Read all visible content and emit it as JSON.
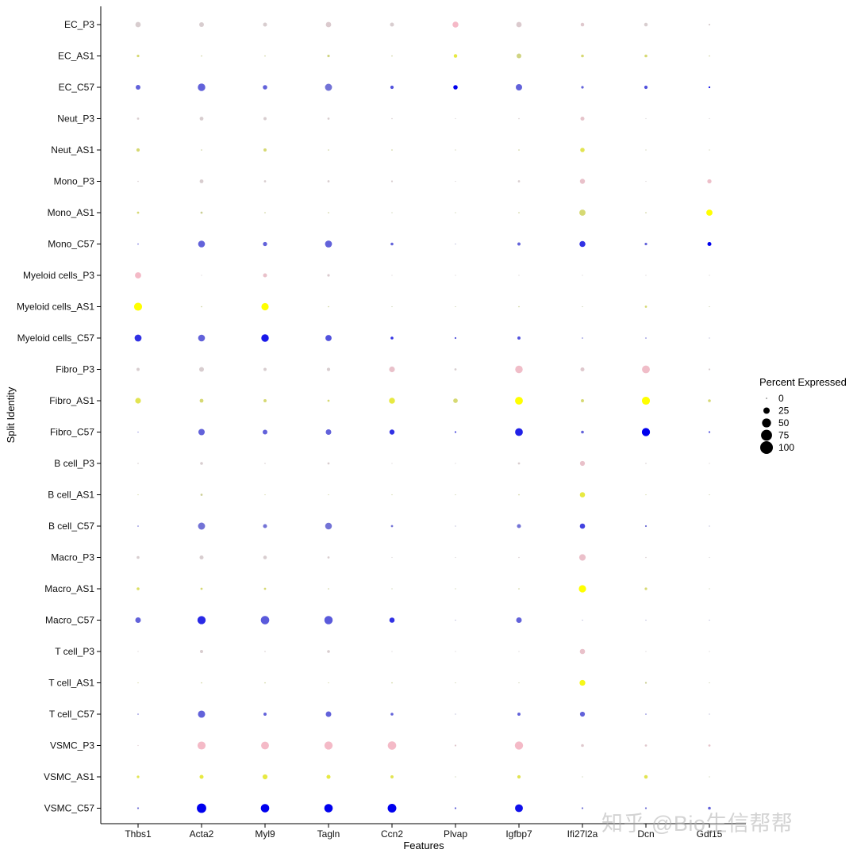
{
  "chart_data": {
    "type": "dotplot",
    "xlabel": "Features",
    "ylabel": "Split Identity",
    "features": [
      "Thbs1",
      "Acta2",
      "Myl9",
      "Tagln",
      "Ccn2",
      "Plvap",
      "Igfbp7",
      "Ifi27l2a",
      "Dcn",
      "Gdf15"
    ],
    "identities": [
      "EC_P3",
      "EC_AS1",
      "EC_C57",
      "Neut_P3",
      "Neut_AS1",
      "Mono_P3",
      "Mono_AS1",
      "Mono_C57",
      "Myeloid cells_P3",
      "Myeloid cells_AS1",
      "Myeloid cells_C57",
      "Fibro_P3",
      "Fibro_AS1",
      "Fibro_C57",
      "B cell_P3",
      "B cell_AS1",
      "B cell_C57",
      "Macro_P3",
      "Macro_AS1",
      "Macro_C57",
      "T cell_P3",
      "T cell_AS1",
      "T cell_C57",
      "VSMC_P3",
      "VSMC_AS1",
      "VSMC_C57"
    ],
    "percent_expressed": [
      [
        18,
        14,
        10,
        18,
        10,
        22,
        18,
        8,
        8,
        2
      ],
      [
        4,
        1,
        1,
        4,
        1,
        8,
        14,
        5,
        5,
        1
      ],
      [
        14,
        35,
        12,
        31,
        7,
        12,
        25,
        4,
        7,
        2
      ],
      [
        3,
        9,
        6,
        3,
        1,
        0,
        1,
        10,
        0,
        0
      ],
      [
        7,
        1,
        6,
        1,
        1,
        0,
        1,
        12,
        0,
        0
      ],
      [
        1,
        9,
        3,
        3,
        2,
        0,
        3,
        16,
        0,
        11
      ],
      [
        3,
        3,
        1,
        1,
        0,
        0,
        1,
        24,
        1,
        24
      ],
      [
        1,
        29,
        11,
        30,
        5,
        0,
        6,
        22,
        4,
        10
      ],
      [
        24,
        0,
        10,
        4,
        0,
        0,
        0,
        0,
        0,
        0
      ],
      [
        40,
        1,
        33,
        1,
        0,
        0,
        1,
        0,
        3,
        0
      ],
      [
        30,
        29,
        35,
        24,
        5,
        2,
        6,
        1,
        1,
        0
      ],
      [
        6,
        14,
        6,
        7,
        20,
        3,
        35,
        10,
        38,
        2
      ],
      [
        20,
        9,
        6,
        3,
        22,
        13,
        38,
        6,
        40,
        5
      ],
      [
        0,
        25,
        14,
        19,
        16,
        2,
        37,
        5,
        41,
        2
      ],
      [
        1,
        5,
        1,
        3,
        0,
        0,
        3,
        15,
        1,
        0
      ],
      [
        0,
        3,
        0,
        0,
        0,
        0,
        1,
        17,
        0,
        0
      ],
      [
        1,
        31,
        10,
        28,
        3,
        0,
        10,
        17,
        2,
        0
      ],
      [
        5,
        10,
        8,
        3,
        0,
        0,
        1,
        26,
        1,
        0
      ],
      [
        5,
        3,
        3,
        1,
        0,
        0,
        1,
        33,
        4,
        0
      ],
      [
        19,
        42,
        44,
        43,
        17,
        0,
        19,
        0,
        0,
        0
      ],
      [
        0,
        6,
        1,
        5,
        0,
        0,
        0,
        17,
        0,
        0
      ],
      [
        0,
        1,
        1,
        0,
        1,
        0,
        0,
        21,
        2,
        0
      ],
      [
        1,
        32,
        6,
        19,
        5,
        0,
        6,
        15,
        1,
        0
      ],
      [
        0,
        40,
        38,
        42,
        44,
        2,
        42,
        5,
        3,
        3
      ],
      [
        4,
        10,
        15,
        10,
        6,
        0,
        7,
        0,
        8,
        0
      ],
      [
        2,
        55,
        44,
        44,
        47,
        2,
        38,
        2,
        2,
        5
      ]
    ],
    "color_groups": {
      "P3": {
        "low": "#d4cfd0",
        "high": "#f7b8c6"
      },
      "AS1": {
        "low": "#c4c9a4",
        "high": "#ffff00"
      },
      "C57": {
        "low": "#a4a4cc",
        "high": "#0000ee"
      }
    },
    "average_expression": [
      [
        0.1,
        0.1,
        0.1,
        0.2,
        0.1,
        0.95,
        0.2,
        0.3,
        0.1,
        0.1
      ],
      [
        0.3,
        0.1,
        0.1,
        0.2,
        0.1,
        0.6,
        0.2,
        0.3,
        0.3,
        0.1
      ],
      [
        0.4,
        0.4,
        0.4,
        0.3,
        0.5,
        1.0,
        0.4,
        0.4,
        0.5,
        0.9
      ],
      [
        0.1,
        0.1,
        0.1,
        0.1,
        0.1,
        0.0,
        0.1,
        0.5,
        0.0,
        0.0
      ],
      [
        0.3,
        0.1,
        0.3,
        0.1,
        0.1,
        0.0,
        0.1,
        0.5,
        0.0,
        0.0
      ],
      [
        0.1,
        0.1,
        0.1,
        0.1,
        0.1,
        0.0,
        0.1,
        0.6,
        0.0,
        0.7
      ],
      [
        0.3,
        0.1,
        0.1,
        0.1,
        0.0,
        0.0,
        0.1,
        0.3,
        0.1,
        1.0
      ],
      [
        0.4,
        0.4,
        0.4,
        0.4,
        0.4,
        0.0,
        0.4,
        0.7,
        0.4,
        1.0
      ],
      [
        0.9,
        0.0,
        0.6,
        0.2,
        0.0,
        0.0,
        0.0,
        0.0,
        0.0,
        0.0
      ],
      [
        1.0,
        0.1,
        1.0,
        0.1,
        0.0,
        0.0,
        0.1,
        0.0,
        0.3,
        0.0
      ],
      [
        0.7,
        0.4,
        0.85,
        0.5,
        0.7,
        0.5,
        0.5,
        0.3,
        0.3,
        0.0
      ],
      [
        0.1,
        0.1,
        0.1,
        0.1,
        0.6,
        0.1,
        0.8,
        0.3,
        0.8,
        0.1
      ],
      [
        0.5,
        0.3,
        0.3,
        0.3,
        0.6,
        0.3,
        1.0,
        0.3,
        1.0,
        0.3
      ],
      [
        0.3,
        0.4,
        0.4,
        0.4,
        0.7,
        0.5,
        0.8,
        0.4,
        1.0,
        0.5
      ],
      [
        0.1,
        0.1,
        0.1,
        0.1,
        0.0,
        0.0,
        0.1,
        0.6,
        0.1,
        0.0
      ],
      [
        0.1,
        0.1,
        0.1,
        0.1,
        0.1,
        0.0,
        0.1,
        0.6,
        0.1,
        0.0
      ],
      [
        0.3,
        0.3,
        0.3,
        0.3,
        0.3,
        0.0,
        0.3,
        0.6,
        0.3,
        0.0
      ],
      [
        0.1,
        0.1,
        0.1,
        0.1,
        0.0,
        0.0,
        0.1,
        0.65,
        0.1,
        0.0
      ],
      [
        0.4,
        0.3,
        0.3,
        0.1,
        0.0,
        0.0,
        0.1,
        1.0,
        0.3,
        0.0
      ],
      [
        0.4,
        0.75,
        0.45,
        0.45,
        0.7,
        0.0,
        0.4,
        0.0,
        0.0,
        0.0
      ],
      [
        0.1,
        0.1,
        0.1,
        0.1,
        0.0,
        0.0,
        0.0,
        0.6,
        0.0,
        0.0
      ],
      [
        0.1,
        0.1,
        0.1,
        0.1,
        0.1,
        0.0,
        0.0,
        0.85,
        0.1,
        0.0
      ],
      [
        0.3,
        0.4,
        0.4,
        0.4,
        0.4,
        0.0,
        0.4,
        0.4,
        0.3,
        0.0
      ],
      [
        0.3,
        0.9,
        0.9,
        0.9,
        0.9,
        0.3,
        0.9,
        0.3,
        0.3,
        0.5
      ],
      [
        0.5,
        0.6,
        0.6,
        0.6,
        0.5,
        0.0,
        0.5,
        0.0,
        0.5,
        0.0
      ],
      [
        0.3,
        1.0,
        1.0,
        1.0,
        1.0,
        0.4,
        0.9,
        0.3,
        0.3,
        0.4
      ]
    ],
    "legend": {
      "title": "Percent Expressed",
      "position": "right",
      "entries": [
        {
          "label": "0",
          "value": 0
        },
        {
          "label": "25",
          "value": 25
        },
        {
          "label": "50",
          "value": 50
        },
        {
          "label": "75",
          "value": 75
        },
        {
          "label": "100",
          "value": 100
        }
      ]
    }
  },
  "watermark": "知乎 @Bio生信帮帮"
}
